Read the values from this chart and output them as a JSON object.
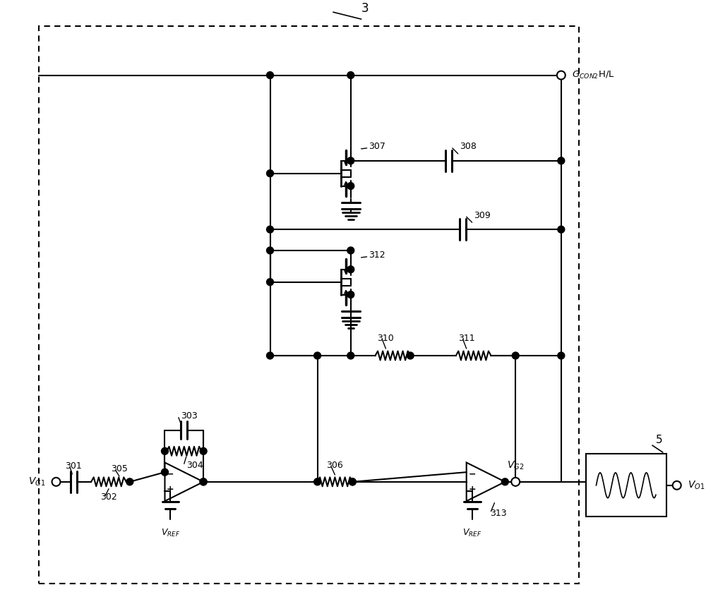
{
  "bg_color": "#ffffff",
  "line_color": "#000000",
  "fig_width": 10.0,
  "fig_height": 8.73,
  "dpi": 100,
  "xmin": 0,
  "xmax": 100,
  "ymin": 0,
  "ymax": 87.3
}
